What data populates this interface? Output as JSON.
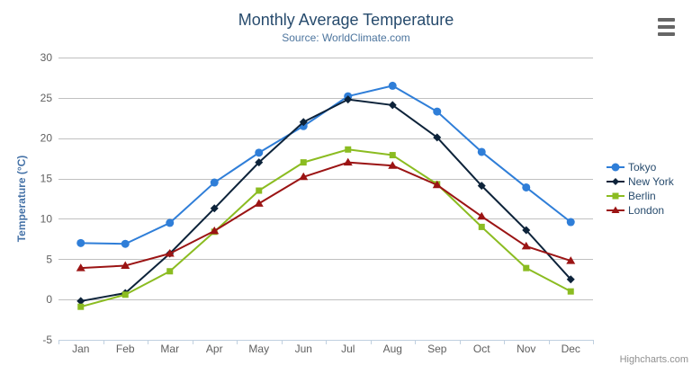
{
  "title": "Monthly Average Temperature",
  "subtitle": "Source: WorldClimate.com",
  "credits": "Highcharts.com",
  "export_menu": {
    "icon": "hamburger-icon"
  },
  "colors": {
    "title_text": "#274b6d",
    "subtitle_text": "#4d759e",
    "axis_title_text": "#4572a7",
    "axis_label_text": "#606060",
    "legend_text": "#274b6d",
    "gridline": "#c0c0c0",
    "axis_line": "#c0d0e0",
    "menu_icon": "#666666",
    "background": "#ffffff"
  },
  "chart_data": {
    "type": "line",
    "title": "Monthly Average Temperature",
    "subtitle": "Source: WorldClimate.com",
    "xlabel": "",
    "ylabel": "Temperature (°C)",
    "ylim": [
      -5,
      30
    ],
    "ytick_step": 5,
    "grid": true,
    "legend_position": "right-middle",
    "categories": [
      "Jan",
      "Feb",
      "Mar",
      "Apr",
      "May",
      "Jun",
      "Jul",
      "Aug",
      "Sep",
      "Oct",
      "Nov",
      "Dec"
    ],
    "series": [
      {
        "name": "Tokyo",
        "color": "#2f7ed8",
        "marker": "circle",
        "values": [
          7.0,
          6.9,
          9.5,
          14.5,
          18.2,
          21.5,
          25.2,
          26.5,
          23.3,
          18.3,
          13.9,
          9.6
        ]
      },
      {
        "name": "New York",
        "color": "#0d233a",
        "marker": "diamond",
        "values": [
          -0.2,
          0.8,
          5.7,
          11.3,
          17.0,
          22.0,
          24.8,
          24.1,
          20.1,
          14.1,
          8.6,
          2.5
        ]
      },
      {
        "name": "Berlin",
        "color": "#8bbc21",
        "marker": "square",
        "values": [
          -0.9,
          0.6,
          3.5,
          8.4,
          13.5,
          17.0,
          18.6,
          17.9,
          14.3,
          9.0,
          3.9,
          1.0
        ]
      },
      {
        "name": "London",
        "color": "#9b1414",
        "marker": "triangle",
        "values": [
          3.9,
          4.2,
          5.7,
          8.5,
          11.9,
          15.2,
          17.0,
          16.6,
          14.2,
          10.3,
          6.6,
          4.8
        ]
      }
    ]
  }
}
